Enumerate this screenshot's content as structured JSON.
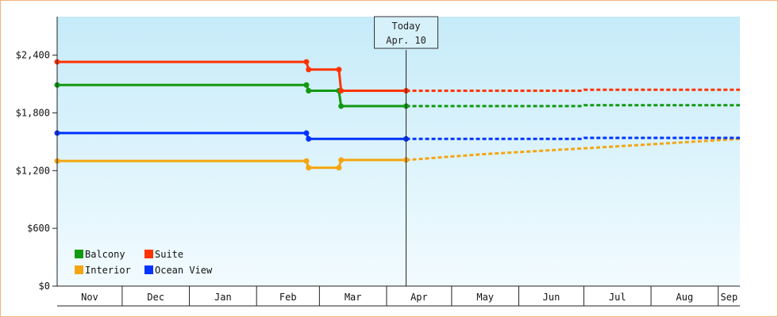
{
  "chart_data": {
    "type": "line",
    "title": "",
    "xlabel": "",
    "ylabel": "",
    "ylim": [
      0,
      2800
    ],
    "grid": false,
    "legend_position": "bottom-left",
    "y_ticks": [
      {
        "value": 0,
        "label": "$0"
      },
      {
        "value": 600,
        "label": "$600"
      },
      {
        "value": 1200,
        "label": "$1,200"
      },
      {
        "value": 1800,
        "label": "$1,800"
      },
      {
        "value": 2400,
        "label": "$2,400"
      }
    ],
    "months": [
      {
        "label": "Nov",
        "start": "2023-11-01",
        "end": "2023-12-01"
      },
      {
        "label": "Dec",
        "start": "2023-12-01",
        "end": "2024-01-01"
      },
      {
        "label": "Jan",
        "start": "2024-01-01",
        "end": "2024-02-01"
      },
      {
        "label": "Feb",
        "start": "2024-02-01",
        "end": "2024-03-01"
      },
      {
        "label": "Mar",
        "start": "2024-03-01",
        "end": "2024-04-01"
      },
      {
        "label": "Apr",
        "start": "2024-04-01",
        "end": "2024-05-01"
      },
      {
        "label": "May",
        "start": "2024-05-01",
        "end": "2024-06-01"
      },
      {
        "label": "Jun",
        "start": "2024-06-01",
        "end": "2024-07-01"
      },
      {
        "label": "Jul",
        "start": "2024-07-01",
        "end": "2024-08-01"
      },
      {
        "label": "Aug",
        "start": "2024-08-01",
        "end": "2024-09-01"
      },
      {
        "label": "Sep",
        "start": "2024-09-01",
        "end": "2024-10-01"
      }
    ],
    "x_range": [
      "2023-11-01",
      "2024-09-11"
    ],
    "today": {
      "title": "Today",
      "label": "Apr. 10",
      "date": "2024-04-10"
    },
    "legend": [
      {
        "series": "Balcony"
      },
      {
        "series": "Suite"
      },
      {
        "series": "Interior"
      },
      {
        "series": "Ocean View"
      }
    ],
    "series": [
      {
        "name": "Balcony",
        "color": "#119911",
        "points": [
          [
            "2023-11-01",
            2090
          ],
          [
            "2024-02-24",
            2090
          ],
          [
            "2024-02-25",
            2030
          ],
          [
            "2024-03-10",
            2030
          ],
          [
            "2024-03-11",
            1870
          ],
          [
            "2024-04-10",
            1870
          ]
        ],
        "forecast": [
          [
            "2024-04-10",
            1870
          ],
          [
            "2024-06-30",
            1870
          ],
          [
            "2024-07-01",
            1880
          ],
          [
            "2024-09-11",
            1880
          ]
        ]
      },
      {
        "name": "Suite",
        "color": "#ff3300",
        "points": [
          [
            "2023-11-01",
            2330
          ],
          [
            "2024-02-24",
            2330
          ],
          [
            "2024-02-25",
            2250
          ],
          [
            "2024-03-10",
            2250
          ],
          [
            "2024-03-11",
            2030
          ],
          [
            "2024-04-10",
            2030
          ]
        ],
        "forecast": [
          [
            "2024-04-10",
            2030
          ],
          [
            "2024-06-30",
            2030
          ],
          [
            "2024-07-01",
            2040
          ],
          [
            "2024-09-11",
            2040
          ]
        ]
      },
      {
        "name": "Interior",
        "color": "#f5a511",
        "points": [
          [
            "2023-11-01",
            1300
          ],
          [
            "2024-02-24",
            1300
          ],
          [
            "2024-02-25",
            1230
          ],
          [
            "2024-03-10",
            1230
          ],
          [
            "2024-03-11",
            1310
          ],
          [
            "2024-04-10",
            1310
          ]
        ],
        "forecast": [
          [
            "2024-04-10",
            1310
          ],
          [
            "2024-05-15",
            1370
          ],
          [
            "2024-07-15",
            1450
          ],
          [
            "2024-09-11",
            1530
          ]
        ]
      },
      {
        "name": "Ocean View",
        "color": "#0033ff",
        "points": [
          [
            "2023-11-01",
            1590
          ],
          [
            "2024-02-24",
            1590
          ],
          [
            "2024-02-25",
            1530
          ],
          [
            "2024-04-10",
            1530
          ]
        ],
        "forecast": [
          [
            "2024-04-10",
            1530
          ],
          [
            "2024-06-30",
            1530
          ],
          [
            "2024-07-01",
            1540
          ],
          [
            "2024-09-11",
            1540
          ]
        ]
      }
    ]
  }
}
